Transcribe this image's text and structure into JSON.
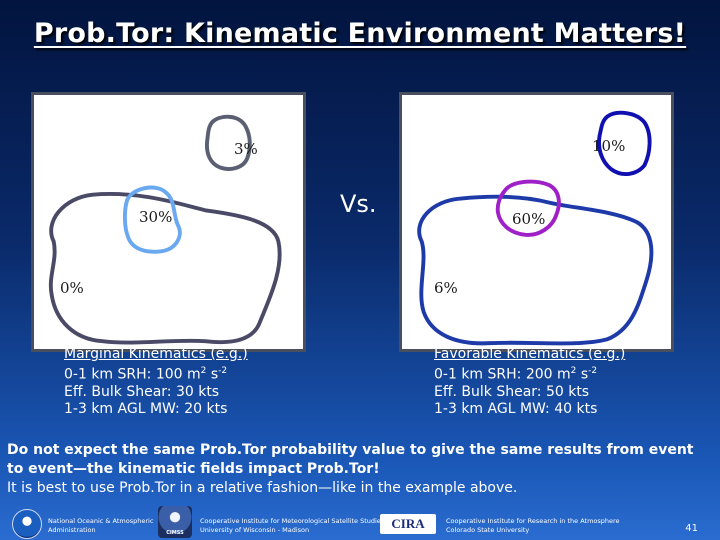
{
  "title": "Prob.Tor: Kinematic Environment Matters!",
  "vs_label": "Vs.",
  "left_panel": {
    "labels": {
      "outer": "0%",
      "mid": "30%",
      "top": "3%"
    },
    "contour_colors": {
      "outer": "#4a4a66",
      "mid": "#6aa8f0",
      "top": "#5a5f72"
    },
    "kinematics": {
      "heading": "Marginal Kinematics (e.g.)",
      "srh_prefix": "0-1 km SRH: 100 m",
      "srh_exp1": "2",
      "srh_mid": " s",
      "srh_exp2": "-2",
      "shear": "Eff. Bulk Shear:  30 kts",
      "mw": "1-3 km AGL MW:  20 kts"
    }
  },
  "right_panel": {
    "labels": {
      "outer": "6%",
      "mid": "60%",
      "top": "10%"
    },
    "contour_colors": {
      "outer": "#1e3aa8",
      "mid": "#a020c8",
      "top": "#1010b0"
    },
    "kinematics": {
      "heading": "Favorable Kinematics (e.g.)",
      "srh_prefix": "0-1 km SRH: 200 m",
      "srh_exp1": "2",
      "srh_mid": " s",
      "srh_exp2": "-2",
      "shear": "Eff. Bulk Shear:  50 kts",
      "mw": "1-3 km AGL MW:  40 kts"
    }
  },
  "note": {
    "bold_text": "Do not expect the same Prob.Tor probability value to give the same results from event to event—the kinematic fields impact Prob.Tor!",
    "normal_text": "It is best to use Prob.Tor in a relative fashion—like in the example above."
  },
  "footer": {
    "noaa_text_line1": "National Oceanic & Atmospheric",
    "noaa_text_line2": "Administration",
    "cimss_logo_text": "CIMSS",
    "cimss_text_line1": "Cooperative Institute for Meteorological Satellite Studies",
    "cimss_text_line2": "University of Wisconsin - Madison",
    "cira_logo_text": "CIRA",
    "cira_text_line1": "Cooperative Institute for Research in the Atmosphere",
    "cira_text_line2": "Colorado State University",
    "page_number": "41"
  }
}
